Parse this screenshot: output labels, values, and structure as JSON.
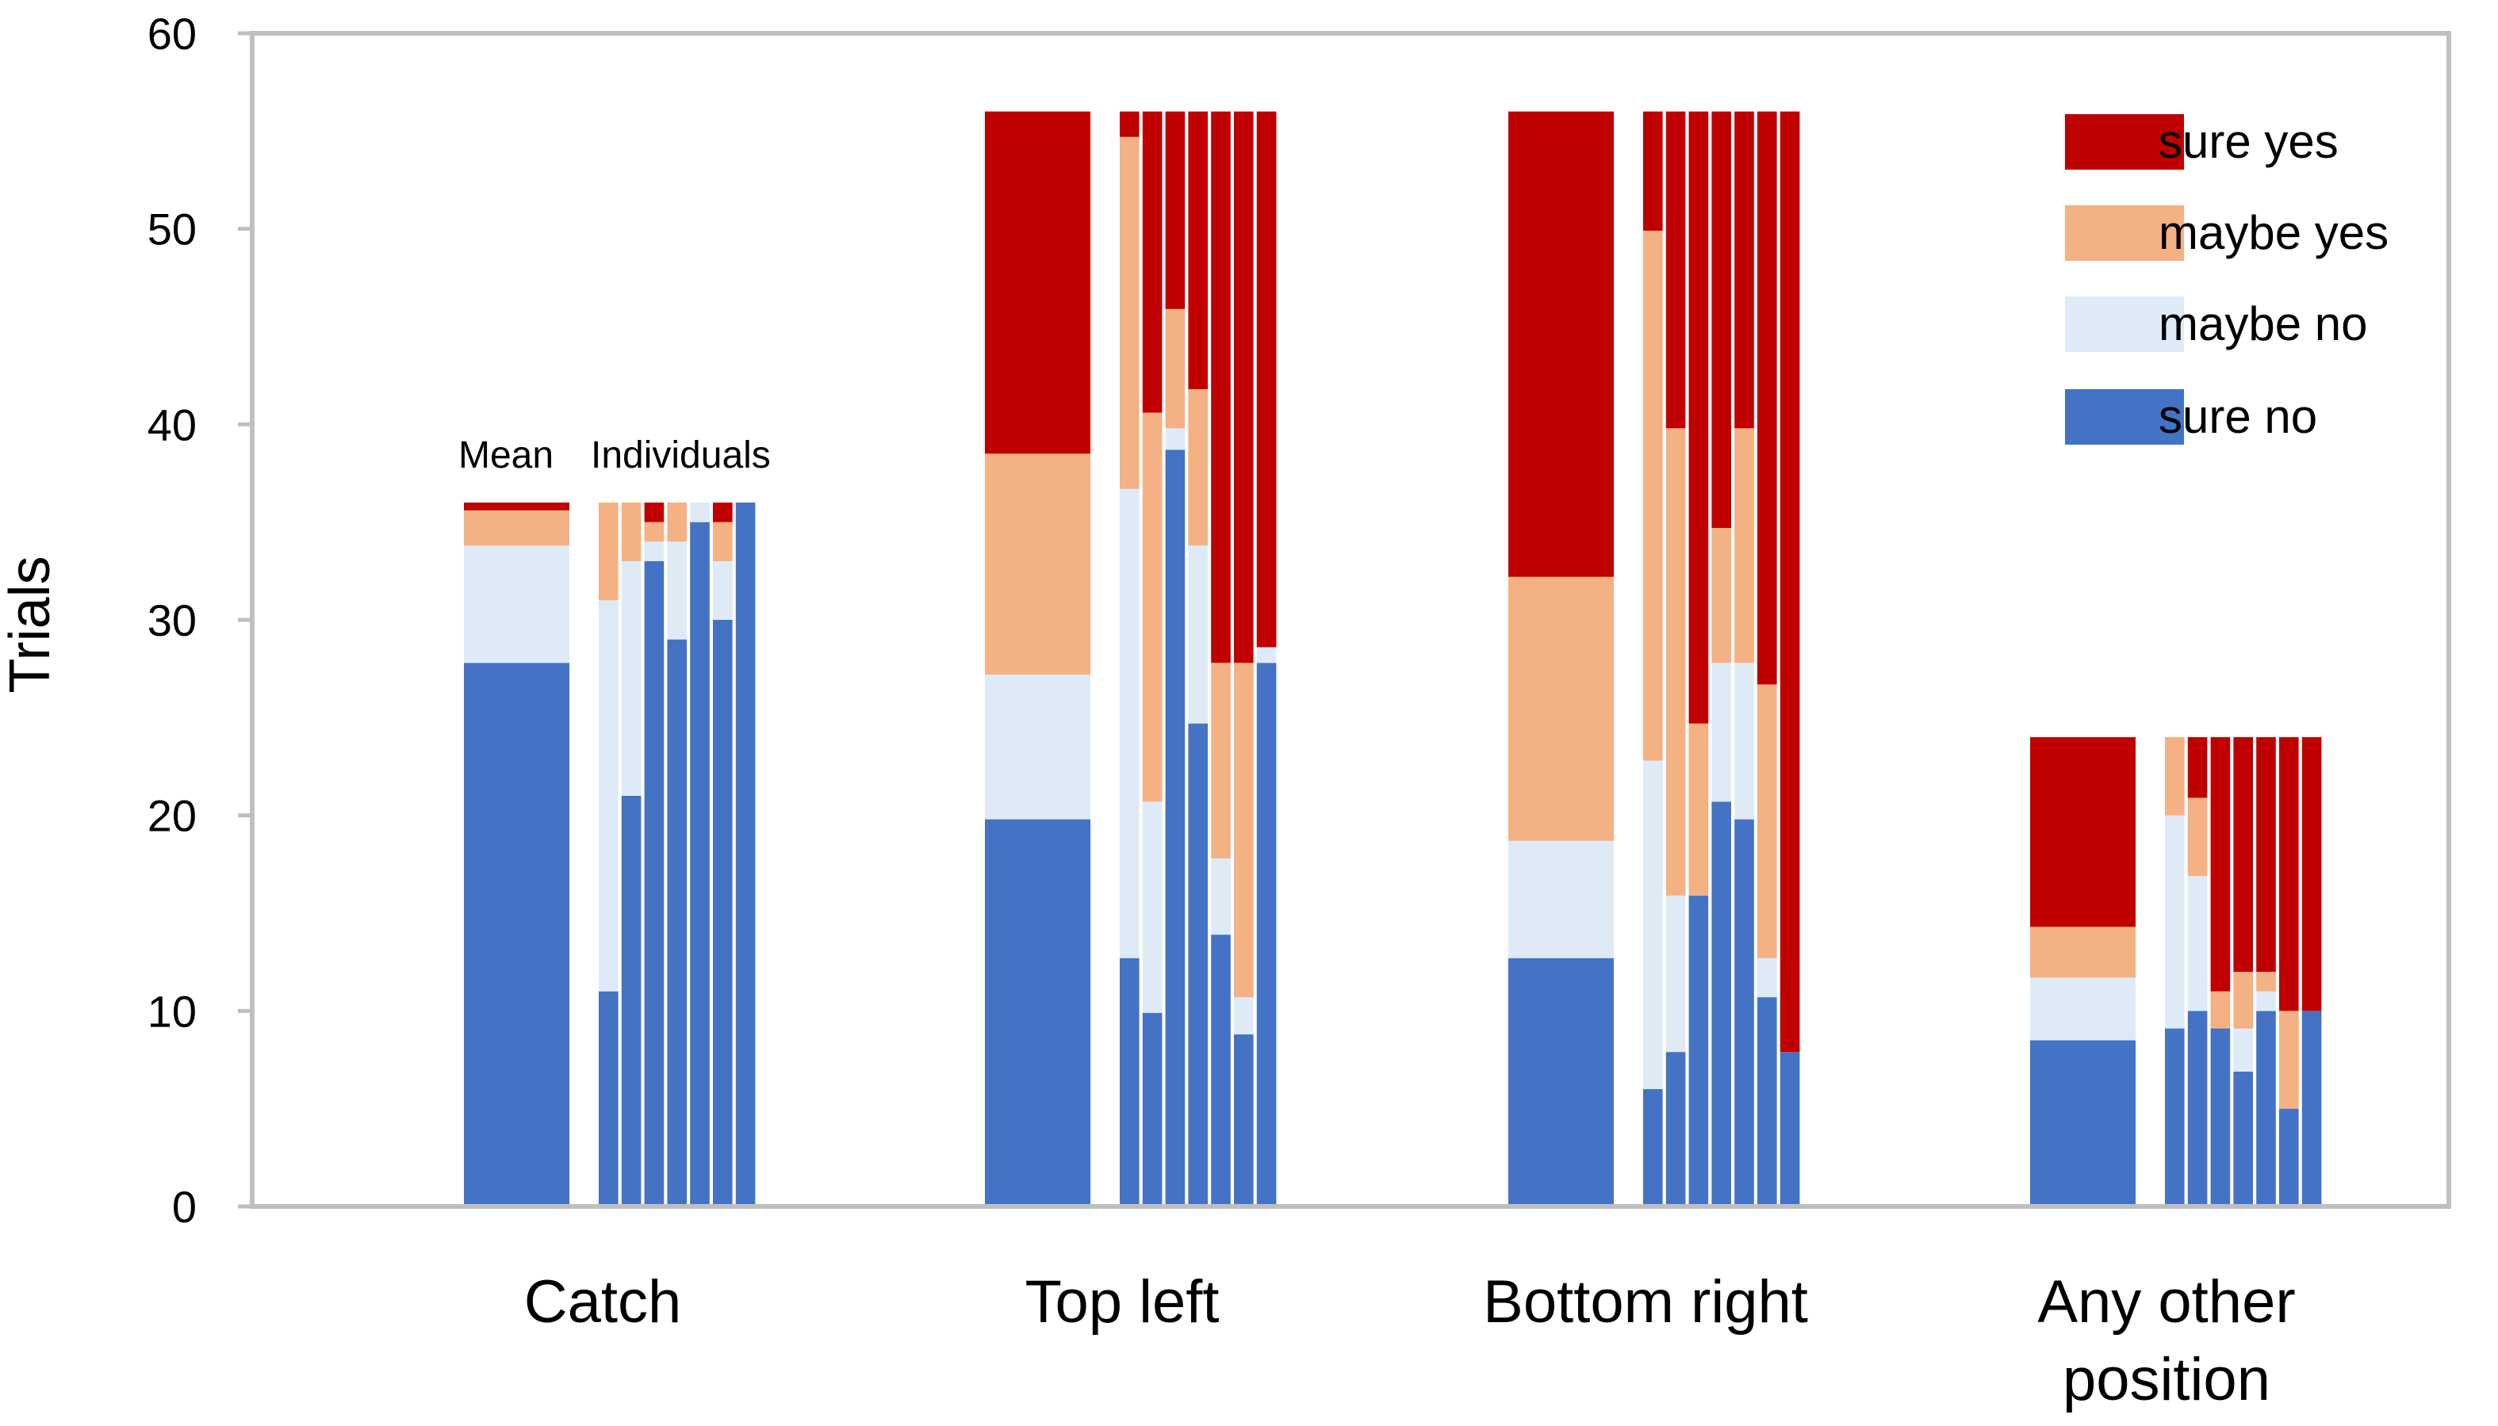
{
  "chart_data": {
    "type": "bar",
    "stacked": true,
    "ylabel": "Trials",
    "xlabel": "",
    "ylim": [
      0,
      60
    ],
    "yticks": [
      0,
      10,
      20,
      30,
      40,
      50,
      60
    ],
    "grid": false,
    "legend_position": "top-right",
    "stack_order": [
      "sure no",
      "maybe no",
      "maybe yes",
      "sure yes"
    ],
    "series": [
      {
        "name": "sure yes",
        "color": "#C00000"
      },
      {
        "name": "maybe yes",
        "color": "#F4B183"
      },
      {
        "name": "maybe no",
        "color": "#DEEBF7"
      },
      {
        "name": "sure no",
        "color": "#4472C4"
      }
    ],
    "annotations": {
      "mean": "Mean",
      "individuals": "Individuals"
    },
    "categories": [
      {
        "label_lines": [
          "Catch"
        ],
        "mean": {
          "sure no": 27.8,
          "maybe no": 6.0,
          "maybe yes": 1.8,
          "sure yes": 0.4
        },
        "individuals": [
          {
            "sure no": 11,
            "maybe no": 20,
            "maybe yes": 5,
            "sure yes": 0
          },
          {
            "sure no": 21,
            "maybe no": 12,
            "maybe yes": 3,
            "sure yes": 0
          },
          {
            "sure no": 33,
            "maybe no": 1,
            "maybe yes": 1,
            "sure yes": 1
          },
          {
            "sure no": 29,
            "maybe no": 5,
            "maybe yes": 2,
            "sure yes": 0
          },
          {
            "sure no": 35,
            "maybe no": 1,
            "maybe yes": 0,
            "sure yes": 0
          },
          {
            "sure no": 30,
            "maybe no": 3,
            "maybe yes": 2,
            "sure yes": 1
          },
          {
            "sure no": 36,
            "maybe no": 0,
            "maybe yes": 0,
            "sure yes": 0
          }
        ]
      },
      {
        "label_lines": [
          "Top left"
        ],
        "mean": {
          "sure no": 19.8,
          "maybe no": 7.4,
          "maybe yes": 11.3,
          "sure yes": 17.5
        },
        "individuals": [
          {
            "sure no": 12.7,
            "maybe no": 24,
            "maybe yes": 18,
            "sure yes": 1.3
          },
          {
            "sure no": 9.9,
            "maybe no": 10.8,
            "maybe yes": 19.9,
            "sure yes": 15.4
          },
          {
            "sure no": 38.7,
            "maybe no": 1.1,
            "maybe yes": 6.1,
            "sure yes": 10.1
          },
          {
            "sure no": 24.7,
            "maybe no": 9.1,
            "maybe yes": 8,
            "sure yes": 14.2
          },
          {
            "sure no": 13.9,
            "maybe no": 3.9,
            "maybe yes": 10,
            "sure yes": 28.2
          },
          {
            "sure no": 8.8,
            "maybe no": 1.9,
            "maybe yes": 17.1,
            "sure yes": 28.2
          },
          {
            "sure no": 27.8,
            "maybe no": 0.8,
            "maybe yes": 0,
            "sure yes": 27.4
          }
        ]
      },
      {
        "label_lines": [
          "Bottom right"
        ],
        "mean": {
          "sure no": 12.7,
          "maybe no": 6.0,
          "maybe yes": 13.5,
          "sure yes": 23.8
        },
        "individuals": [
          {
            "sure no": 6,
            "maybe no": 16.8,
            "maybe yes": 27.1,
            "sure yes": 6.1
          },
          {
            "sure no": 7.9,
            "maybe no": 8,
            "maybe yes": 23.9,
            "sure yes": 16.2
          },
          {
            "sure no": 15.9,
            "maybe no": 0,
            "maybe yes": 8.8,
            "sure yes": 31.3
          },
          {
            "sure no": 20.7,
            "maybe no": 7.1,
            "maybe yes": 6.9,
            "sure yes": 21.3
          },
          {
            "sure no": 19.8,
            "maybe no": 8,
            "maybe yes": 12,
            "sure yes": 16.2
          },
          {
            "sure no": 10.7,
            "maybe no": 2,
            "maybe yes": 14,
            "sure yes": 29.3
          },
          {
            "sure no": 7.9,
            "maybe no": 0,
            "maybe yes": 0,
            "sure yes": 48.1
          }
        ]
      },
      {
        "label_lines": [
          "Any other",
          "position"
        ],
        "mean": {
          "sure no": 8.5,
          "maybe no": 3.2,
          "maybe yes": 2.6,
          "sure yes": 9.7
        },
        "individuals": [
          {
            "sure no": 9.1,
            "maybe no": 10.9,
            "maybe yes": 4,
            "sure yes": 0
          },
          {
            "sure no": 10,
            "maybe no": 6.9,
            "maybe yes": 4,
            "sure yes": 3.1
          },
          {
            "sure no": 9.1,
            "maybe no": 0,
            "maybe yes": 1.9,
            "sure yes": 13
          },
          {
            "sure no": 6.9,
            "maybe no": 2.2,
            "maybe yes": 2.9,
            "sure yes": 12
          },
          {
            "sure no": 10,
            "maybe no": 1,
            "maybe yes": 1,
            "sure yes": 12
          },
          {
            "sure no": 5,
            "maybe no": 0,
            "maybe yes": 5,
            "sure yes": 14
          },
          {
            "sure no": 10,
            "maybe no": 0,
            "maybe yes": 0,
            "sure yes": 14
          }
        ]
      }
    ]
  }
}
